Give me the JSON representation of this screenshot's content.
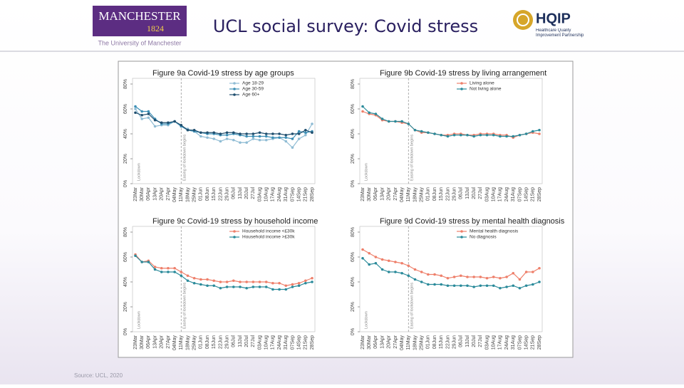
{
  "header": {
    "title": "UCL social survey: Covid stress",
    "left_logo": {
      "name": "MANCHESTER",
      "year": "1824",
      "subtitle": "The University of Manchester"
    },
    "right_logo": {
      "name": "HQIP",
      "subtitle": "Healthcare Quality Improvement Partnership"
    }
  },
  "source": "Source: UCL, 2020",
  "chart_data": [
    {
      "type": "line",
      "title": "Figure 9a Covid-19 stress by age groups",
      "categories": [
        "23Mar",
        "30Mar",
        "06Apr",
        "13Apr",
        "20Apr",
        "27Apr",
        "04May",
        "11May",
        "18May",
        "25May",
        "01Jun",
        "08Jun",
        "15Jun",
        "22Jun",
        "29Jun",
        "06Jul",
        "13Jul",
        "20Jul",
        "27Jul",
        "03Aug",
        "10Aug",
        "17Aug",
        "24Aug",
        "31Aug",
        "07Sep",
        "14Sep",
        "21Sep",
        "28Sep"
      ],
      "series": [
        {
          "name": "Age 18-29",
          "color": "#8fbcd4",
          "values": [
            60,
            52,
            53,
            46,
            47,
            47,
            50,
            46,
            44,
            42,
            38,
            37,
            36,
            34,
            36,
            35,
            33,
            33,
            36,
            35,
            35,
            36,
            37,
            34,
            29,
            36,
            39,
            48
          ]
        },
        {
          "name": "Age 30-59",
          "color": "#3d8fb5",
          "values": [
            62,
            58,
            58,
            52,
            48,
            48,
            50,
            46,
            43,
            42,
            41,
            40,
            40,
            39,
            39,
            40,
            39,
            38,
            38,
            38,
            38,
            37,
            37,
            37,
            36,
            42,
            41,
            42
          ]
        },
        {
          "name": "Age 60+",
          "color": "#1f4e6e",
          "values": [
            57,
            55,
            56,
            51,
            49,
            49,
            50,
            47,
            43,
            43,
            41,
            41,
            41,
            40,
            41,
            41,
            40,
            40,
            40,
            41,
            40,
            40,
            40,
            39,
            40,
            40,
            43,
            41
          ]
        }
      ],
      "annotations": [
        {
          "text": "Lockdown",
          "x": "23Mar"
        },
        {
          "text": "Easing of lockdown begins",
          "x": "11May"
        }
      ],
      "ylim": [
        0,
        80
      ],
      "yticks": [
        {
          "value": 0,
          "label": "0%"
        },
        {
          "value": 20,
          "label": "20%"
        },
        {
          "value": 40,
          "label": "40%"
        },
        {
          "value": 60,
          "label": "60%"
        },
        {
          "value": 80,
          "label": "80%"
        }
      ],
      "legend": "top-right"
    },
    {
      "type": "line",
      "title": "Figure 9b Covid-19 stress by living arrangement",
      "categories": [
        "23Mar",
        "30Mar",
        "06Apr",
        "13Apr",
        "20Apr",
        "27Apr",
        "04May",
        "11May",
        "18May",
        "25May",
        "01Jun",
        "08Jun",
        "15Jun",
        "22Jun",
        "29Jun",
        "06Jul",
        "13Jul",
        "20Jul",
        "27Jul",
        "03Aug",
        "10Aug",
        "17Aug",
        "24Aug",
        "31Aug",
        "07Sep",
        "14Sep",
        "21Sep",
        "28Sep"
      ],
      "series": [
        {
          "name": "Living alone",
          "color": "#ee7f6a",
          "values": [
            58,
            56,
            55,
            51,
            50,
            50,
            49,
            48,
            43,
            41,
            41,
            40,
            39,
            39,
            40,
            40,
            39,
            39,
            40,
            40,
            40,
            39,
            39,
            37,
            39,
            40,
            41,
            40
          ]
        },
        {
          "name": "Not living alone",
          "color": "#2a8a9a",
          "values": [
            62,
            57,
            56,
            52,
            50,
            50,
            50,
            48,
            43,
            42,
            41,
            40,
            39,
            38,
            39,
            39,
            39,
            38,
            39,
            39,
            39,
            38,
            38,
            38,
            39,
            40,
            42,
            43
          ]
        }
      ],
      "annotations": [
        {
          "text": "Lockdown",
          "x": "23Mar"
        },
        {
          "text": "Easing of lockdown begins",
          "x": "11May"
        }
      ],
      "ylim": [
        0,
        80
      ],
      "yticks": [
        {
          "value": 0,
          "label": "0%"
        },
        {
          "value": 20,
          "label": "20%"
        },
        {
          "value": 40,
          "label": "40%"
        },
        {
          "value": 60,
          "label": "60%"
        },
        {
          "value": 80,
          "label": "80%"
        }
      ],
      "legend": "top-right"
    },
    {
      "type": "line",
      "title": "Figure 9c Covid-19 stress by household income",
      "categories": [
        "23Mar",
        "30Mar",
        "06Apr",
        "13Apr",
        "20Apr",
        "27Apr",
        "04May",
        "11May",
        "18May",
        "25May",
        "01Jun",
        "08Jun",
        "15Jun",
        "22Jun",
        "29Jun",
        "06Jul",
        "13Jul",
        "20Jul",
        "27Jul",
        "03Aug",
        "10Aug",
        "17Aug",
        "24Aug",
        "31Aug",
        "07Sep",
        "14Sep",
        "21Sep",
        "28Sep"
      ],
      "series": [
        {
          "name": "Household income <£30k",
          "color": "#ee7f6a",
          "values": [
            62,
            56,
            57,
            52,
            51,
            51,
            51,
            48,
            45,
            43,
            42,
            42,
            41,
            40,
            40,
            41,
            40,
            40,
            40,
            40,
            40,
            39,
            39,
            37,
            38,
            39,
            41,
            43
          ]
        },
        {
          "name": "Household income >£30k",
          "color": "#2a8a9a",
          "values": [
            61,
            56,
            56,
            50,
            48,
            48,
            48,
            45,
            41,
            39,
            38,
            37,
            37,
            35,
            36,
            36,
            36,
            35,
            36,
            36,
            36,
            34,
            34,
            34,
            36,
            37,
            39,
            40
          ]
        }
      ],
      "annotations": [
        {
          "text": "Lockdown",
          "x": "23Mar"
        },
        {
          "text": "Easing of lockdown begins",
          "x": "11May"
        }
      ],
      "ylim": [
        0,
        80
      ],
      "yticks": [
        {
          "value": 0,
          "label": "0%"
        },
        {
          "value": 20,
          "label": "20%"
        },
        {
          "value": 40,
          "label": "40%"
        },
        {
          "value": 60,
          "label": "60%"
        },
        {
          "value": 80,
          "label": "80%"
        }
      ],
      "legend": "top-right"
    },
    {
      "type": "line",
      "title": "Figure 9d Covid-19 stress by mental health diagnosis",
      "categories": [
        "23Mar",
        "30Mar",
        "06Apr",
        "13Apr",
        "20Apr",
        "27Apr",
        "04May",
        "11May",
        "18May",
        "25May",
        "01Jun",
        "08Jun",
        "15Jun",
        "22Jun",
        "29Jun",
        "06Jul",
        "13Jul",
        "20Jul",
        "27Jul",
        "03Aug",
        "10Aug",
        "17Aug",
        "24Aug",
        "31Aug",
        "07Sep",
        "14Sep",
        "21Sep",
        "28Sep"
      ],
      "series": [
        {
          "name": "Mental health diagnosis",
          "color": "#ee7f6a",
          "values": [
            66,
            63,
            60,
            58,
            57,
            56,
            55,
            53,
            50,
            48,
            46,
            46,
            45,
            43,
            44,
            45,
            44,
            44,
            44,
            43,
            44,
            43,
            44,
            47,
            42,
            48,
            48,
            51
          ]
        },
        {
          "name": "No diagnosis",
          "color": "#2a8a9a",
          "values": [
            59,
            54,
            55,
            50,
            48,
            48,
            47,
            45,
            42,
            40,
            38,
            38,
            38,
            37,
            37,
            37,
            37,
            36,
            37,
            37,
            37,
            35,
            36,
            37,
            35,
            37,
            38,
            40
          ]
        }
      ],
      "annotations": [
        {
          "text": "Lockdown",
          "x": "23Mar"
        },
        {
          "text": "Easing of lockdown begins",
          "x": "11May"
        }
      ],
      "ylim": [
        0,
        80
      ],
      "yticks": [
        {
          "value": 0,
          "label": "0%"
        },
        {
          "value": 20,
          "label": "20%"
        },
        {
          "value": 40,
          "label": "40%"
        },
        {
          "value": 60,
          "label": "60%"
        },
        {
          "value": 80,
          "label": "80%"
        }
      ],
      "legend": "top-right"
    }
  ]
}
